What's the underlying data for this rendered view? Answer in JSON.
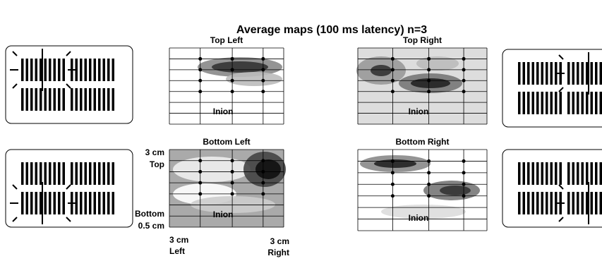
{
  "title": "Average maps (100 ms latency) n=3",
  "panels": [
    {
      "title": "Top Left",
      "inion": "Inion"
    },
    {
      "title": "Top Right",
      "inion": "Inion"
    },
    {
      "title": "Bottom Left",
      "inion": "Inion"
    },
    {
      "title": "Bottom Right",
      "inion": "Inion"
    }
  ],
  "axis_labels": {
    "top": [
      "3 cm",
      "Top"
    ],
    "bottom": [
      "Bottom",
      "0.5 cm"
    ],
    "left": [
      "3 cm",
      "Left"
    ],
    "right": [
      "3 cm",
      "Right"
    ]
  }
}
